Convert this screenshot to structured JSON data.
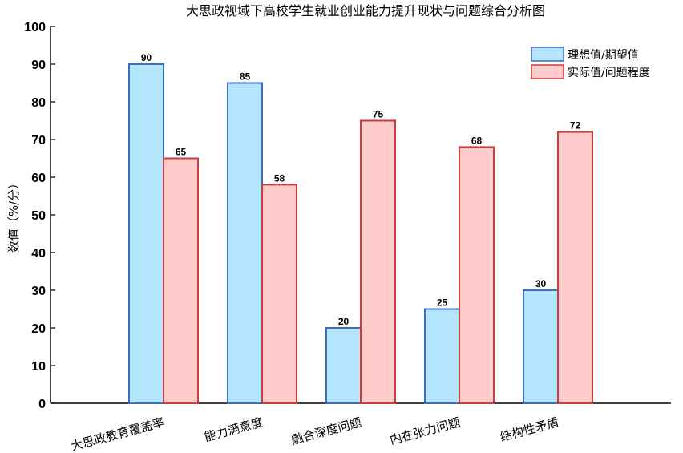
{
  "chart_data": {
    "type": "bar",
    "title": "大思政视域下高校学生就业创业能力提升现状与问题综合分析图",
    "xlabel": "",
    "ylabel": "数值（%/分）",
    "ylim": [
      0,
      100
    ],
    "yticks": [
      0,
      10,
      20,
      30,
      40,
      50,
      60,
      70,
      80,
      90,
      100
    ],
    "categories": [
      "大思政教育覆盖率",
      "能力满意度",
      "融合深度问题",
      "内在张力问题",
      "结构性矛盾"
    ],
    "series": [
      {
        "name": "理想值/期望值",
        "values": [
          90,
          85,
          20,
          25,
          30
        ],
        "fill": "#b3e5fc",
        "stroke": "#3a6cc8"
      },
      {
        "name": "实际值/问题程度",
        "values": [
          65,
          58,
          75,
          68,
          72
        ],
        "fill": "#ffcccc",
        "stroke": "#d33a3a"
      }
    ],
    "legend_position": "top-right",
    "grid": false
  }
}
